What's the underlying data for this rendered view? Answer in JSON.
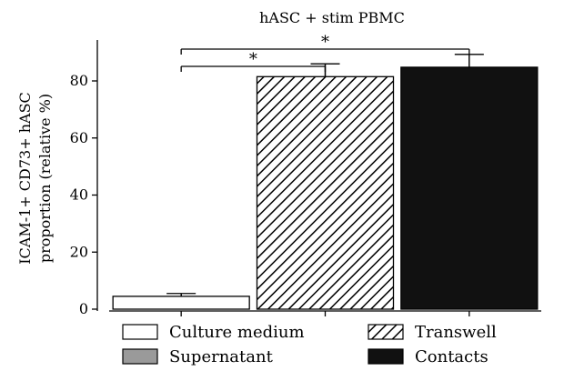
{
  "chart_data": {
    "type": "bar",
    "title": "hASC + stim PBMC",
    "ylabel_lines": [
      "ICAM-1+ CD73+ hASC",
      "proportion (relative %)"
    ],
    "xlabel": "",
    "ylim": [
      0,
      95
    ],
    "yticks": [
      0,
      20,
      40,
      60,
      80
    ],
    "categories": [
      "Culture medium",
      "Transwell",
      "Contacts"
    ],
    "values": [
      4.5,
      81.5,
      84.8
    ],
    "errors": [
      1.0,
      4.5,
      4.5
    ],
    "styles": [
      "white",
      "hatch",
      "black"
    ],
    "grid": false,
    "legend_position": "bottom",
    "legend": [
      {
        "label": "Culture medium",
        "style": "white"
      },
      {
        "label": "Transwell",
        "style": "hatch"
      },
      {
        "label": "Supernatant",
        "style": "gray"
      },
      {
        "label": "Contacts",
        "style": "black"
      }
    ],
    "significance": [
      {
        "from": 0,
        "to": 1,
        "label": "*"
      },
      {
        "from": 0,
        "to": 2,
        "label": "*"
      }
    ]
  }
}
